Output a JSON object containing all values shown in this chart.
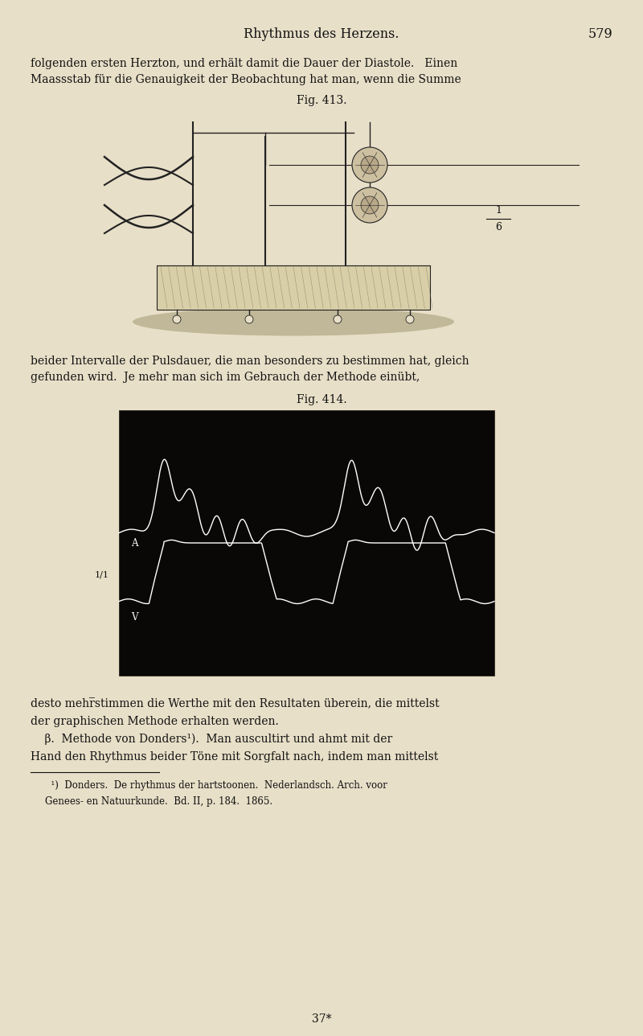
{
  "bg_color": "#e8dfc8",
  "page_width": 8.0,
  "page_height": 12.88,
  "header_text": "Rhythmus des Herzens.",
  "header_page": "579",
  "line1a": "folgenden ersten Herzton, und erhält damit die Dauer der Diastole.   Einen",
  "line1b": "Maassstab für die Genauigkeit der Beobachtung hat man, wenn die Summe",
  "fig413_label": "Fig. 413.",
  "fig413_fraction_num": "1",
  "fig413_fraction_den": "6",
  "line2a": "beider Intervalle der Pulsdauer, die man besonders zu bestimmen hat, gleich",
  "line2b": "gefunden wird.  Je mehr man sich im Gebrauch der Methode einübt,",
  "fig414_label": "Fig. 414.",
  "fig414_label_A": "A",
  "fig414_label_v1": "1/1",
  "fig414_label_V": "V",
  "line3a": "desto mehr̅stimmen die Werthe mit den Resultaten überein, die mittelst",
  "line3b": "der graphischen Methode erhalten werden.",
  "line3c": "    β.  Methode von Donders¹).  Man auscultirt und ahmt mit der",
  "line3d": "Hand den Rhythmus beider Töne mit Sorgfalt nach, indem man mittelst",
  "fn1": "  ¹)  Donders.  De rhythmus der hartstoonen.  Nederlandsch. Arch. voor",
  "fn2": "Genees- en Natuurkunde.  Bd. II, p. 184.  1865.",
  "footer_text": "37*",
  "text_color": "#111111",
  "dark_color": "#0a0806"
}
